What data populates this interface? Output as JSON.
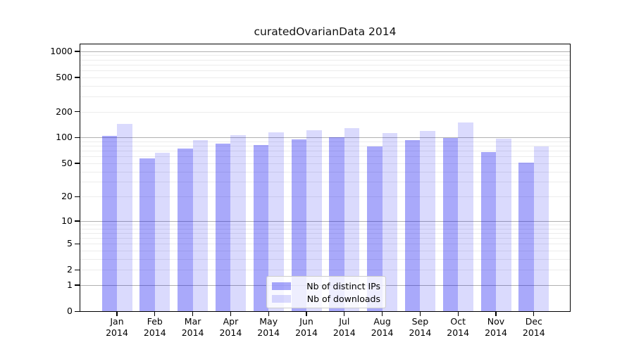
{
  "title": "curatedOvarianData 2014",
  "chart_data": {
    "type": "bar",
    "title": "curatedOvarianData 2014",
    "scale": "log1p",
    "grid": true,
    "legend_position": "lower center",
    "months": [
      "Jan",
      "Feb",
      "Mar",
      "Apr",
      "May",
      "Jun",
      "Jul",
      "Aug",
      "Sep",
      "Oct",
      "Nov",
      "Dec"
    ],
    "year": "2014",
    "categories": [
      "Jan 2014",
      "Feb 2014",
      "Mar 2014",
      "Apr 2014",
      "May 2014",
      "Jun 2014",
      "Jul 2014",
      "Aug 2014",
      "Sep 2014",
      "Oct 2014",
      "Nov 2014",
      "Dec 2014"
    ],
    "series": [
      {
        "name": "Nb of distinct IPs",
        "color": "rgba(10,10,240,0.35)",
        "values": [
          105,
          57,
          74,
          85,
          81,
          96,
          101,
          79,
          93,
          99,
          68,
          51
        ]
      },
      {
        "name": "Nb of downloads",
        "color": "rgba(10,10,240,0.15)",
        "values": [
          143,
          66,
          93,
          107,
          115,
          121,
          128,
          113,
          119,
          150,
          97,
          79
        ]
      }
    ],
    "y_ticks": [
      0,
      1,
      2,
      5,
      10,
      20,
      50,
      100,
      200,
      500,
      1000
    ],
    "ylim": [
      0,
      1200
    ],
    "xlabel": "",
    "ylabel": ""
  },
  "colors": {
    "grid_minor": "#ececec",
    "grid_major": "#b0b0b0",
    "spine": "#000000",
    "legend_border": "#cccccc"
  }
}
